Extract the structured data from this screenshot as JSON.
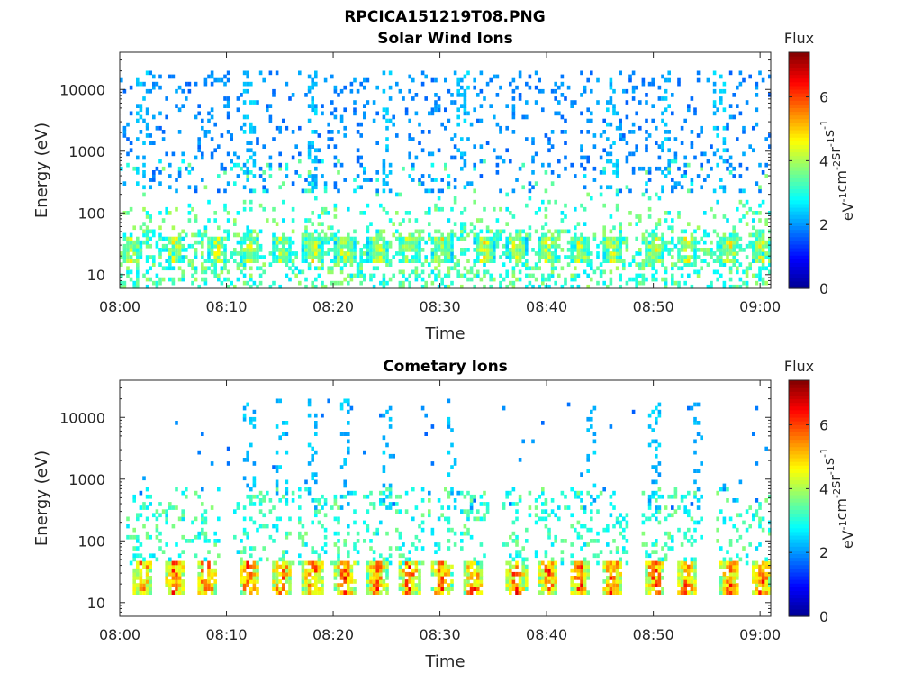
{
  "figure_title": "RPCICA151219T08.PNG",
  "colormap": [
    "#00008f",
    "#0000ff",
    "#0080ff",
    "#00ffff",
    "#80ff80",
    "#ffff00",
    "#ff8000",
    "#ff0000",
    "#800000"
  ],
  "chart_data": [
    {
      "type": "heatmap",
      "title": "Solar Wind Ions",
      "xlabel": "Time",
      "ylabel": "Energy (eV)",
      "y_scale": "log",
      "ylim": [
        6,
        40000
      ],
      "xlim": [
        "08:00",
        "09:01"
      ],
      "xticks": [
        "08:00",
        "08:10",
        "08:20",
        "08:30",
        "08:40",
        "08:50",
        "09:00"
      ],
      "yticks": [
        "10",
        "100",
        "1000",
        "10000"
      ],
      "colorbar": {
        "label": "Flux",
        "units": "eV-1 cm-2 sr-1 s-1",
        "range": [
          0,
          7.4
        ],
        "ticks": [
          "0",
          "2",
          "4",
          "6"
        ]
      },
      "features": {
        "sparse_high_energy_band_eV": [
          200,
          20000
        ],
        "sparse_high_energy_flux": 1.6,
        "low_energy_band_eV": [
          6,
          120
        ],
        "burst_energy_band_eV": [
          15,
          40
        ],
        "burst_times": [
          "08:01",
          "08:05",
          "08:09",
          "08:12",
          "08:15",
          "08:18",
          "08:21",
          "08:24",
          "08:27",
          "08:30",
          "08:34",
          "08:37",
          "08:40",
          "08:43",
          "08:46",
          "08:50",
          "08:53",
          "08:57",
          "09:00"
        ],
        "burst_peak_flux": 5.2,
        "vertical_streaks": [
          "08:02",
          "08:12",
          "08:18",
          "08:25",
          "08:32",
          "08:46",
          "08:51",
          "08:56"
        ]
      }
    },
    {
      "type": "heatmap",
      "title": "Cometary Ions",
      "xlabel": "Time",
      "ylabel": "Energy (eV)",
      "y_scale": "log",
      "ylim": [
        6,
        40000
      ],
      "xlim": [
        "08:00",
        "09:01"
      ],
      "xticks": [
        "08:00",
        "08:10",
        "08:20",
        "08:30",
        "08:40",
        "08:50",
        "09:00"
      ],
      "yticks": [
        "10",
        "100",
        "1000",
        "10000"
      ],
      "colorbar": {
        "label": "Flux",
        "units": "eV-1 cm-2 sr-1 s-1",
        "range": [
          0,
          7.4
        ],
        "ticks": [
          "0",
          "2",
          "4",
          "6"
        ]
      },
      "features": {
        "sparse_high_energy_band_eV": [
          300,
          20000
        ],
        "sparse_high_energy_flux": 1.6,
        "burst_energy_band_eV": [
          12,
          45
        ],
        "burst_times": [
          "08:02",
          "08:05",
          "08:08",
          "08:12",
          "08:15",
          "08:18",
          "08:21",
          "08:24",
          "08:27",
          "08:30",
          "08:33",
          "08:37",
          "08:40",
          "08:43",
          "08:46",
          "08:50",
          "08:53",
          "08:57",
          "09:00"
        ],
        "burst_peak_flux": 6.9,
        "vertical_streaks": [
          "08:12",
          "08:15",
          "08:18",
          "08:21",
          "08:25",
          "08:31",
          "08:44",
          "08:50",
          "08:54"
        ]
      }
    }
  ]
}
